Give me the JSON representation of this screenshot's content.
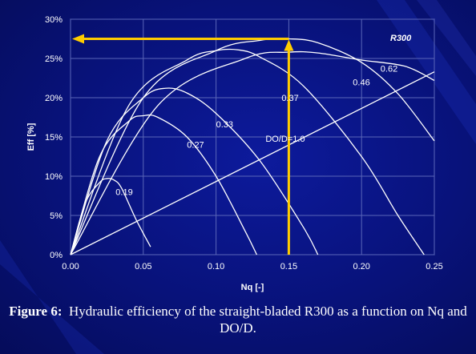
{
  "chart_data": {
    "type": "line",
    "title": "R300",
    "xlabel": "Nq [-]",
    "ylabel": "Eff [%]",
    "xlim": [
      0,
      0.25
    ],
    "ylim": [
      0,
      30
    ],
    "x_ticks": [
      "0.00",
      "0.05",
      "0.10",
      "0.15",
      "0.20",
      "0.25"
    ],
    "y_ticks": [
      "0%",
      "5%",
      "10%",
      "15%",
      "20%",
      "25%",
      "30%"
    ],
    "grid": true,
    "series": [
      {
        "name": "0.19",
        "x": [
          0,
          0.01,
          0.02,
          0.025,
          0.03,
          0.035,
          0.045,
          0.055
        ],
        "y": [
          0,
          6.5,
          9.2,
          9.7,
          9.5,
          8.5,
          4.5,
          1.0
        ]
      },
      {
        "name": "0.27",
        "x": [
          0,
          0.02,
          0.04,
          0.05,
          0.06,
          0.08,
          0.1,
          0.12,
          0.128
        ],
        "y": [
          0,
          12.5,
          17.0,
          17.7,
          17.5,
          15.0,
          10.0,
          3.0,
          0.0
        ]
      },
      {
        "name": "0.33",
        "x": [
          0,
          0.025,
          0.05,
          0.065,
          0.08,
          0.1,
          0.13,
          0.16,
          0.17
        ],
        "y": [
          0,
          14.5,
          20.0,
          21.2,
          20.6,
          18.0,
          12.0,
          3.5,
          0.0
        ]
      },
      {
        "name": "0.37",
        "x": [
          0,
          0.04,
          0.08,
          0.1,
          0.115,
          0.13,
          0.16,
          0.2,
          0.225,
          0.243
        ],
        "y": [
          0,
          19.0,
          24.8,
          26.0,
          26.1,
          25.2,
          21.5,
          12.5,
          5.0,
          0.0
        ]
      },
      {
        "name": "0.46",
        "x": [
          0,
          0.05,
          0.1,
          0.13,
          0.15,
          0.17,
          0.2,
          0.225,
          0.25
        ],
        "y": [
          0,
          20.0,
          26.0,
          27.3,
          27.5,
          27.0,
          24.5,
          20.5,
          14.5
        ]
      },
      {
        "name": "0.62",
        "x": [
          0,
          0.06,
          0.12,
          0.15,
          0.17,
          0.2,
          0.23,
          0.25
        ],
        "y": [
          0,
          19.0,
          25.0,
          25.8,
          25.7,
          24.8,
          24.0,
          22.2
        ]
      },
      {
        "name": "DO/D=1.0",
        "x": [
          0,
          0.25
        ],
        "y": [
          0,
          23.3
        ]
      }
    ],
    "annotations": [
      {
        "text": "0.19",
        "x": 0.031,
        "y": 7.6
      },
      {
        "text": "0.27",
        "x": 0.08,
        "y": 13.6
      },
      {
        "text": "0.33",
        "x": 0.1,
        "y": 16.2
      },
      {
        "text": "0.37",
        "x": 0.145,
        "y": 19.6
      },
      {
        "text": "0.46",
        "x": 0.194,
        "y": 21.6
      },
      {
        "text": "0.62",
        "x": 0.213,
        "y": 23.3
      },
      {
        "text": "DO/D=1.0",
        "x": 0.134,
        "y": 14.4
      }
    ],
    "arrow": {
      "x": 0.15,
      "y": 27.5,
      "color": "#ffcc00"
    }
  },
  "caption": {
    "label": "Figure 6:",
    "text": "Hydraulic efficiency of the straight-bladed R300 as a function on Nq and DO/D."
  }
}
